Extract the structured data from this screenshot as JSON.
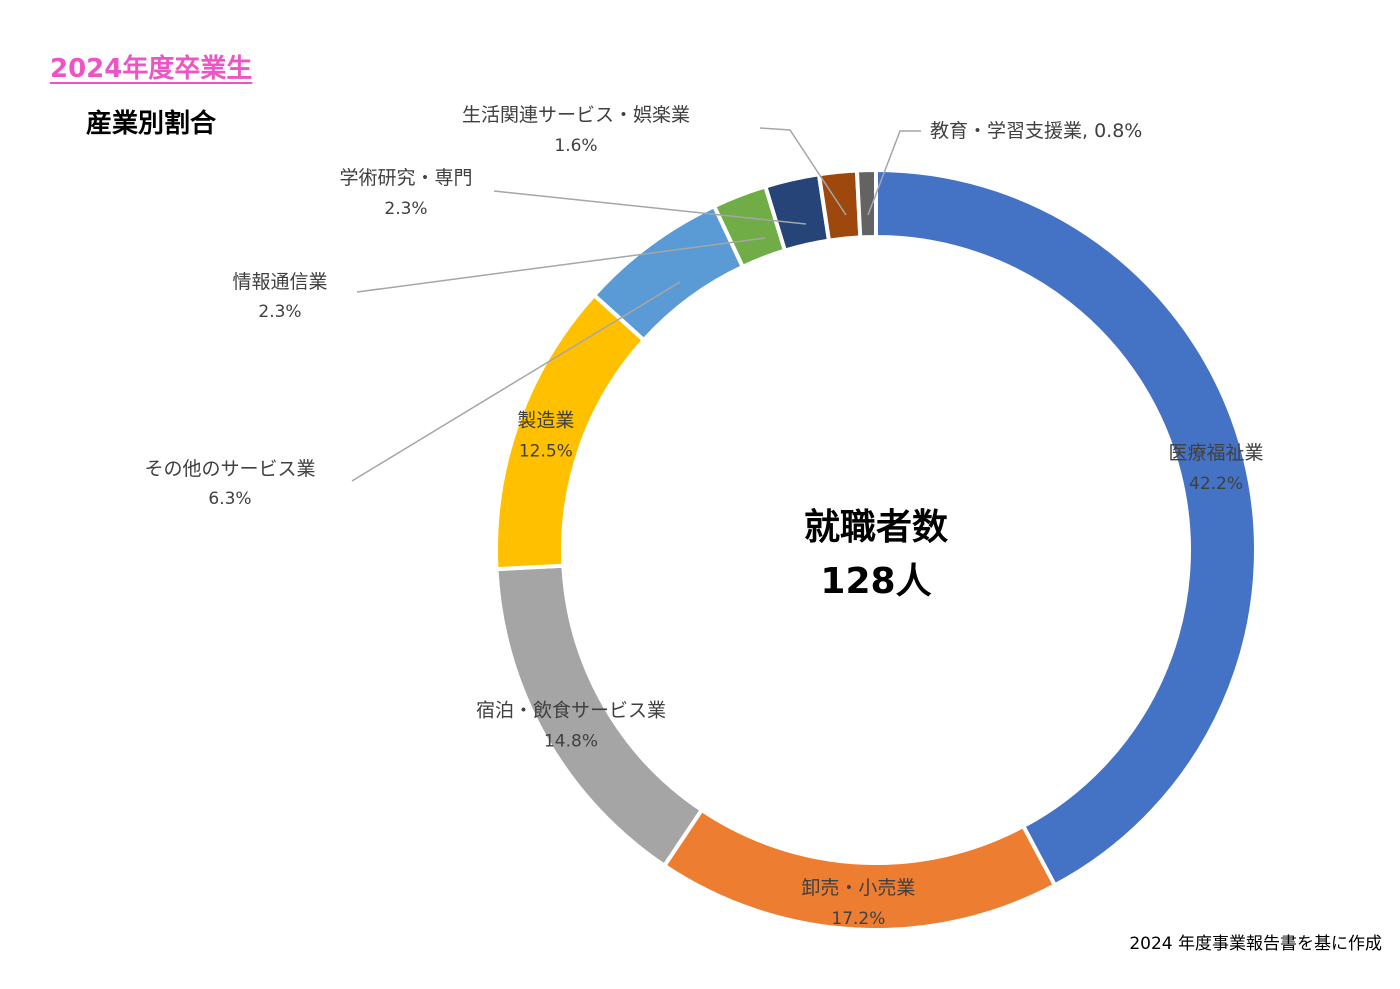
{
  "header": {
    "year_title": "2024年度卒業生",
    "subtitle": "産業別割合"
  },
  "center": {
    "line1": "就職者数",
    "line2": "128人"
  },
  "source_note": "2024 年度事業報告書を基に作成",
  "chart_data": {
    "type": "pie",
    "subtype": "donut",
    "title": "産業別割合",
    "series": [
      {
        "name": "医療福祉業",
        "label": "医療福祉業",
        "pct_label": "42.2%",
        "value": 42.2,
        "color": "#4472c4",
        "label_placement": "inside"
      },
      {
        "name": "卸売・小売業",
        "label": "卸売・小売業",
        "pct_label": "17.2%",
        "value": 17.2,
        "color": "#ed7d31",
        "label_placement": "inside"
      },
      {
        "name": "宿泊・飲食サービス業",
        "label": "宿泊・飲食サービス業",
        "pct_label": "14.8%",
        "value": 14.8,
        "color": "#a5a5a5",
        "label_placement": "inside"
      },
      {
        "name": "製造業",
        "label": "製造業",
        "pct_label": "12.5%",
        "value": 12.5,
        "color": "#ffc000",
        "label_placement": "inside"
      },
      {
        "name": "その他のサービス業",
        "label": "その他のサービス業",
        "pct_label": "6.3%",
        "value": 6.3,
        "color": "#5b9bd5",
        "label_placement": "outside"
      },
      {
        "name": "情報通信業",
        "label": "情報通信業",
        "pct_label": "2.3%",
        "value": 2.3,
        "color": "#70ad47",
        "label_placement": "outside"
      },
      {
        "name": "学術研究・専門",
        "label": "学術研究・専門",
        "pct_label": "2.3%",
        "value": 2.3,
        "color": "#264478",
        "label_placement": "outside"
      },
      {
        "name": "生活関連サービス・娯楽業",
        "label": "生活関連サービス・娯楽業",
        "pct_label": "1.6%",
        "value": 1.6,
        "color": "#9e480e",
        "label_placement": "outside"
      },
      {
        "name": "教育・学習支援業",
        "label": "教育・学習支援業, 0.8%",
        "pct_label": "",
        "value": 0.8,
        "color": "#636363",
        "label_placement": "outside"
      }
    ]
  }
}
